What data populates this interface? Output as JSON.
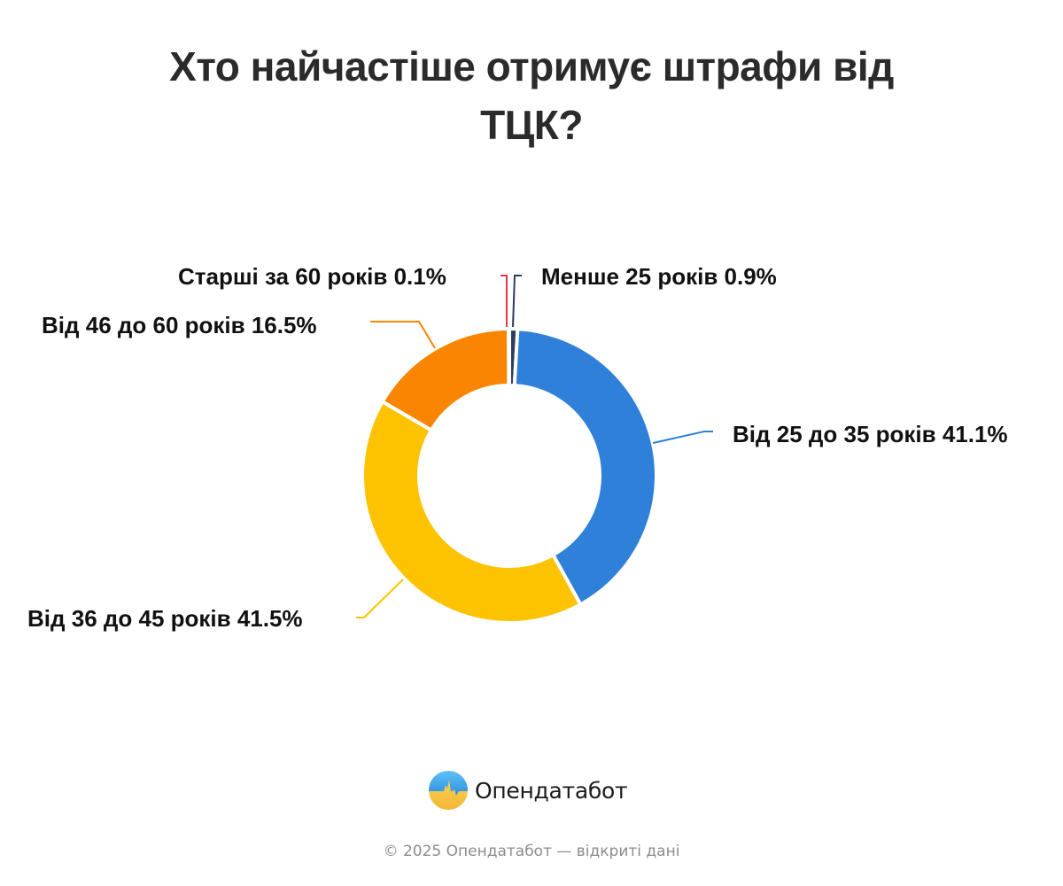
{
  "title": {
    "line1": "Хто найчастіше отримує штрафи від",
    "line2": "ТЦК?"
  },
  "labels": {
    "under25": "Менше 25 років 0.9%",
    "age25_35": "Від 25 до 35 років 41.1%",
    "age36_45": "Від 36 до 45 років 41.5%",
    "age46_60": "Від 46 до 60 років 16.5%",
    "over60": "Старші за 60 років 0.1%"
  },
  "colors": {
    "under25": "#2c3e5c",
    "age25_35": "#2f80d9",
    "age36_45": "#fdc300",
    "age46_60": "#fa8500",
    "over60": "#e8394a"
  },
  "brand": {
    "name": "Опендатабот",
    "logo_icon": "opendatabot-logo-icon"
  },
  "footer": {
    "text": "© 2025 Опендатабот — відкриті дані"
  },
  "chart_data": {
    "type": "pie",
    "variant": "donut",
    "title": "Хто найчастіше отримує штрафи від ТЦК?",
    "categories": [
      "Менше 25 років",
      "Від 25 до 35 років",
      "Від 36 до 45 років",
      "Від 46 до 60 років",
      "Старші за 60 років"
    ],
    "values": [
      0.9,
      41.1,
      41.5,
      16.5,
      0.1
    ],
    "unit": "%",
    "colors": [
      "#2c3e5c",
      "#2f80d9",
      "#fdc300",
      "#fa8500",
      "#e8394a"
    ],
    "start_angle": "top (12 o'clock), clockwise",
    "legend": "none; outside labels with leader lines"
  }
}
